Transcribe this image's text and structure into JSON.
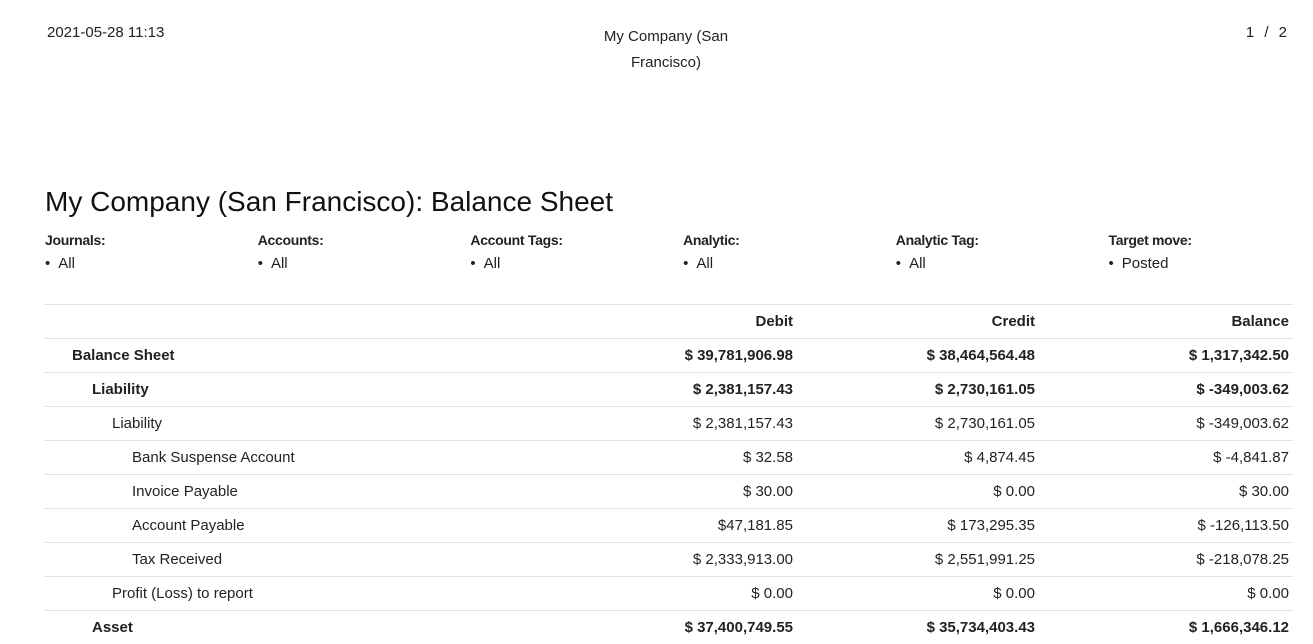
{
  "header": {
    "date": "2021-05-28 11:13",
    "company": "My Company (San Francisco)",
    "page": "1 / 2"
  },
  "title": "My Company (San Francisco): Balance Sheet",
  "filters": [
    {
      "label": "Journals:",
      "value": "All"
    },
    {
      "label": "Accounts:",
      "value": "All"
    },
    {
      "label": "Account Tags:",
      "value": "All"
    },
    {
      "label": "Analytic:",
      "value": "All"
    },
    {
      "label": "Analytic Tag:",
      "value": "All"
    },
    {
      "label": "Target move:",
      "value": "Posted"
    }
  ],
  "table": {
    "columns": [
      "Debit",
      "Credit",
      "Balance"
    ],
    "rows": [
      [
        "Balance Sheet",
        "$ 39,781,906.98",
        "$ 38,464,564.48",
        "$ 1,317,342.50"
      ],
      [
        "Liability",
        "$ 2,381,157.43",
        "$ 2,730,161.05",
        "$ -349,003.62"
      ],
      [
        "Liability",
        "$ 2,381,157.43",
        "$ 2,730,161.05",
        "$ -349,003.62"
      ],
      [
        "Bank Suspense Account",
        "$ 32.58",
        "$ 4,874.45",
        "$ -4,841.87"
      ],
      [
        "Invoice Payable",
        "$ 30.00",
        "$ 0.00",
        "$ 30.00"
      ],
      [
        "Account Payable",
        "$47,181.85",
        "$ 173,295.35",
        "$ -126,113.50"
      ],
      [
        "Tax Received",
        "$ 2,333,913.00",
        "$ 2,551,991.25",
        "$ -218,078.25"
      ],
      [
        "Profit (Loss) to report",
        "$ 0.00",
        "$ 0.00",
        "$ 0.00"
      ],
      [
        "Asset",
        "$ 37,400,749.55",
        "$ 35,734,403.43",
        "$ 1,666,346.12"
      ]
    ]
  }
}
